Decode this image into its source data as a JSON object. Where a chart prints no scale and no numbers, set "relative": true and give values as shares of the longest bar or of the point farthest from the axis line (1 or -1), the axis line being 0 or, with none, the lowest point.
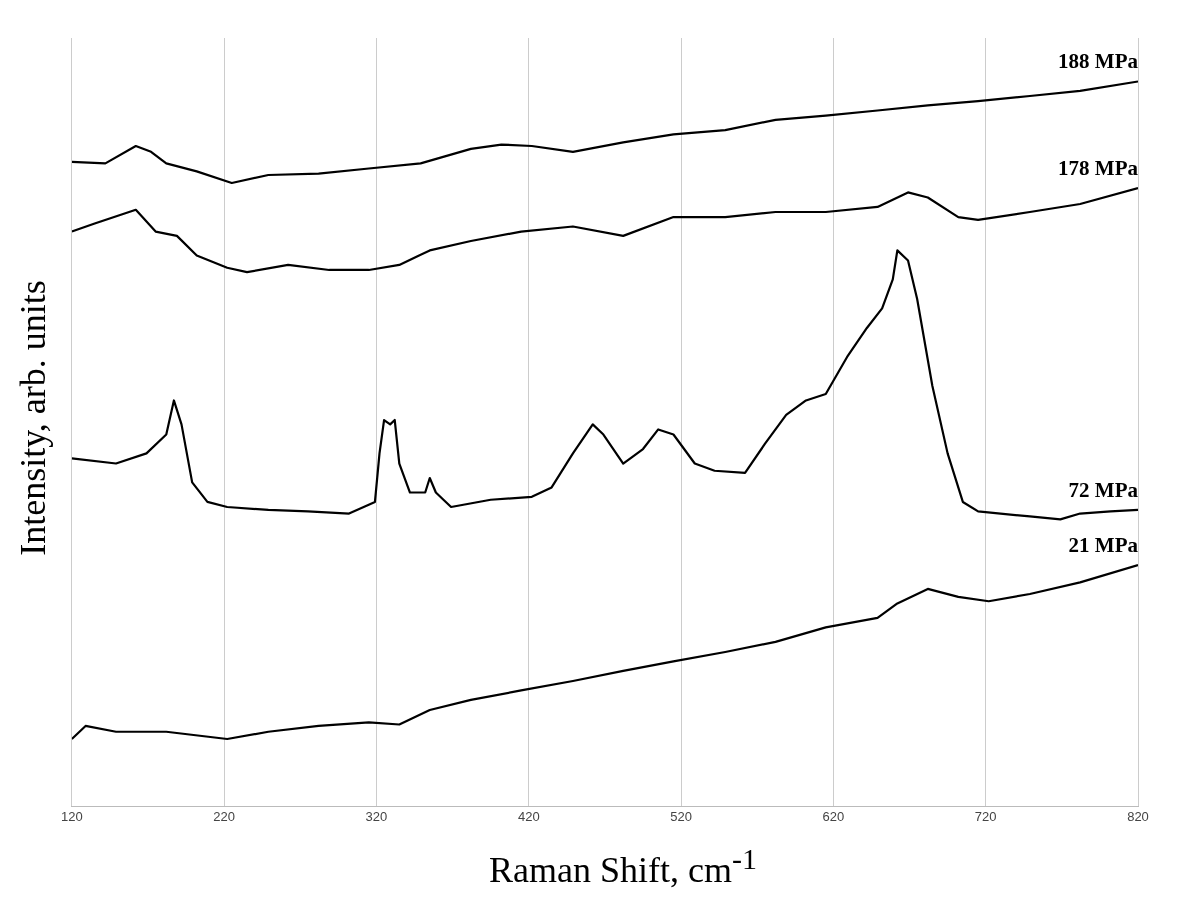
{
  "chart_data": {
    "type": "line",
    "xlabel": "Raman Shift, cm$^{-1}$",
    "ylabel": "Intensity, arb. units",
    "relative": true,
    "xlim": [
      120,
      820
    ],
    "xticks": [
      120,
      220,
      320,
      420,
      520,
      620,
      720,
      820
    ],
    "grid": "x",
    "legend": false,
    "marker": "none",
    "line_style": "solid",
    "series": [
      {
        "name": "188 MPa",
        "color": "#000000",
        "x": [
          120,
          142,
          162,
          172,
          182,
          202,
          225,
          249,
          282,
          315,
          349,
          382,
          402,
          422,
          449,
          482,
          515,
          549,
          582,
          615,
          649,
          682,
          715,
          749,
          782,
          820
        ],
        "values": [
          0.889,
          0.887,
          0.911,
          0.903,
          0.887,
          0.876,
          0.86,
          0.871,
          0.873,
          0.88,
          0.887,
          0.907,
          0.913,
          0.911,
          0.903,
          0.916,
          0.927,
          0.933,
          0.947,
          0.953,
          0.96,
          0.967,
          0.973,
          0.98,
          0.987,
          1.0
        ]
      },
      {
        "name": "178 MPa",
        "color": "#000000",
        "x": [
          120,
          135,
          162,
          175,
          189,
          202,
          222,
          235,
          262,
          289,
          315,
          335,
          355,
          382,
          415,
          449,
          482,
          515,
          549,
          582,
          615,
          649,
          669,
          682,
          702,
          715,
          749,
          782,
          820
        ],
        "values": [
          0.793,
          0.804,
          0.823,
          0.793,
          0.787,
          0.76,
          0.743,
          0.737,
          0.747,
          0.74,
          0.74,
          0.747,
          0.767,
          0.78,
          0.793,
          0.8,
          0.787,
          0.813,
          0.813,
          0.82,
          0.82,
          0.827,
          0.847,
          0.84,
          0.813,
          0.809,
          0.82,
          0.831,
          0.853
        ]
      },
      {
        "name": "72 MPa",
        "color": "#000000",
        "x": [
          120,
          149,
          169,
          182,
          187,
          192,
          199,
          209,
          222,
          249,
          275,
          302,
          319,
          322,
          325,
          329,
          332,
          335,
          342,
          352,
          355,
          359,
          369,
          395,
          422,
          435,
          449,
          462,
          469,
          482,
          495,
          505,
          515,
          529,
          542,
          562,
          575,
          589,
          602,
          615,
          629,
          642,
          652,
          659,
          662,
          669,
          675,
          685,
          695,
          705,
          715,
          749,
          769,
          782,
          802,
          820
        ],
        "values": [
          0.48,
          0.473,
          0.487,
          0.513,
          0.56,
          0.527,
          0.447,
          0.42,
          0.413,
          0.409,
          0.407,
          0.404,
          0.42,
          0.487,
          0.533,
          0.527,
          0.533,
          0.473,
          0.433,
          0.433,
          0.453,
          0.433,
          0.413,
          0.423,
          0.427,
          0.44,
          0.487,
          0.527,
          0.513,
          0.473,
          0.493,
          0.52,
          0.513,
          0.473,
          0.463,
          0.46,
          0.5,
          0.54,
          0.56,
          0.569,
          0.62,
          0.66,
          0.687,
          0.727,
          0.767,
          0.753,
          0.7,
          0.58,
          0.487,
          0.42,
          0.407,
          0.4,
          0.396,
          0.404,
          0.407,
          0.409
        ]
      },
      {
        "name": "21 MPa",
        "color": "#000000",
        "x": [
          120,
          129,
          149,
          182,
          222,
          249,
          282,
          315,
          335,
          355,
          382,
          415,
          449,
          482,
          515,
          549,
          582,
          615,
          649,
          662,
          682,
          702,
          722,
          749,
          782,
          820
        ],
        "values": [
          0.093,
          0.111,
          0.103,
          0.103,
          0.093,
          0.103,
          0.111,
          0.116,
          0.113,
          0.133,
          0.147,
          0.16,
          0.173,
          0.187,
          0.2,
          0.213,
          0.227,
          0.247,
          0.26,
          0.28,
          0.3,
          0.289,
          0.283,
          0.293,
          0.309,
          0.333
        ]
      }
    ]
  }
}
